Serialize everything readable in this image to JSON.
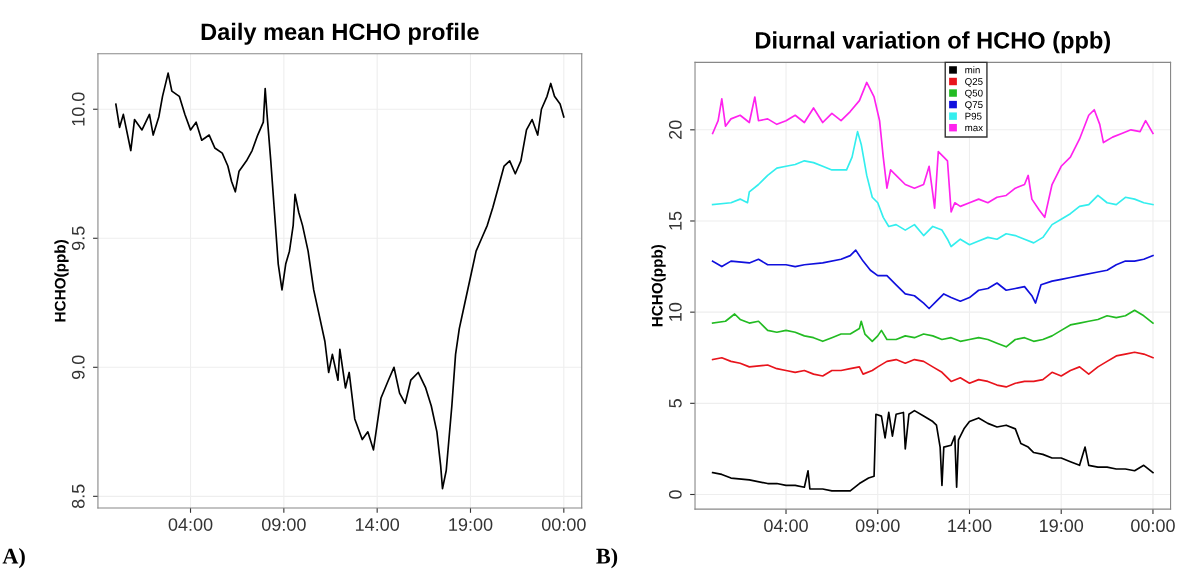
{
  "chart_data": [
    {
      "type": "line",
      "title": "Daily mean HCHO profile",
      "ylabel": "HCHO(ppb)",
      "annotations": [
        "A)"
      ],
      "xlim": [
        -0.96,
        24.96
      ],
      "xticks": [
        {
          "value": 4,
          "label": "04:00"
        },
        {
          "value": 9,
          "label": "09:00"
        },
        {
          "value": 14,
          "label": "14:00"
        },
        {
          "value": 19,
          "label": "19:00"
        },
        {
          "value": 24,
          "label": "00:00"
        }
      ],
      "ylim": [
        8.455,
        10.215
      ],
      "yticks": [
        {
          "value": 8.5,
          "label": "8.5"
        },
        {
          "value": 9,
          "label": "9.0"
        },
        {
          "value": 9.5,
          "label": "9.5"
        },
        {
          "value": 10,
          "label": "10.0"
        }
      ],
      "grid": true,
      "series": [
        {
          "color": "#000000",
          "x": [
            0,
            0.2,
            0.4,
            0.8,
            1.0,
            1.4,
            1.8,
            2.0,
            2.3,
            2.5,
            2.8,
            3.0,
            3.4,
            3.7,
            4.0,
            4.3,
            4.6,
            5.0,
            5.3,
            5.7,
            6.0,
            6.2,
            6.4,
            6.6,
            7.0,
            7.3,
            7.6,
            7.9,
            8.0,
            8.1,
            8.3,
            8.5,
            8.7,
            8.9,
            9.1,
            9.3,
            9.5,
            9.6,
            9.8,
            10.0,
            10.3,
            10.6,
            10.9,
            11.2,
            11.4,
            11.6,
            11.9,
            12.0,
            12.3,
            12.5,
            12.8,
            13.2,
            13.5,
            13.8,
            14.0,
            14.2,
            14.6,
            14.9,
            15.2,
            15.5,
            15.8,
            16.2,
            16.6,
            16.9,
            17.2,
            17.4,
            17.5,
            17.7,
            18.0,
            18.2,
            18.4,
            18.7,
            19.0,
            19.3,
            19.6,
            19.9,
            20.2,
            20.5,
            20.8,
            21.1,
            21.4,
            21.7,
            22.0,
            22.3,
            22.6,
            22.8,
            23.1,
            23.3,
            23.5,
            23.8,
            24.0
          ],
          "values": [
            10.02,
            9.93,
            9.98,
            9.84,
            9.96,
            9.92,
            9.98,
            9.9,
            9.97,
            10.05,
            10.14,
            10.07,
            10.05,
            9.98,
            9.92,
            9.95,
            9.88,
            9.9,
            9.85,
            9.83,
            9.78,
            9.72,
            9.68,
            9.76,
            9.8,
            9.84,
            9.9,
            9.95,
            10.08,
            9.98,
            9.8,
            9.6,
            9.4,
            9.3,
            9.4,
            9.45,
            9.55,
            9.67,
            9.6,
            9.55,
            9.45,
            9.3,
            9.2,
            9.1,
            8.98,
            9.05,
            8.95,
            9.07,
            8.92,
            8.98,
            8.8,
            8.72,
            8.75,
            8.68,
            8.78,
            8.88,
            8.95,
            9.0,
            8.9,
            8.86,
            8.95,
            8.98,
            8.92,
            8.85,
            8.75,
            8.62,
            8.53,
            8.6,
            8.85,
            9.05,
            9.15,
            9.25,
            9.35,
            9.45,
            9.5,
            9.55,
            9.62,
            9.7,
            9.78,
            9.8,
            9.75,
            9.8,
            9.92,
            9.96,
            9.9,
            10.0,
            10.05,
            10.1,
            10.05,
            10.02,
            9.97
          ]
        }
      ]
    },
    {
      "type": "line",
      "title": "Diurnal variation of HCHO (ppb)",
      "ylabel": "HCHO(ppb)",
      "annotations": [
        "B)"
      ],
      "xlim": [
        -0.96,
        24.96
      ],
      "xticks": [
        {
          "value": 4,
          "label": "04:00"
        },
        {
          "value": 9,
          "label": "09:00"
        },
        {
          "value": 14,
          "label": "14:00"
        },
        {
          "value": 19,
          "label": "19:00"
        },
        {
          "value": 24,
          "label": "00:00"
        }
      ],
      "ylim": [
        -0.8,
        23.7
      ],
      "yticks": [
        0,
        5,
        10,
        15,
        20
      ],
      "grid": true,
      "legend": "top",
      "series": [
        {
          "name": "min",
          "color": "#000000",
          "x": [
            0,
            0.5,
            1,
            2,
            3,
            3.5,
            4,
            4.5,
            5,
            5.2,
            5.3,
            6,
            6.5,
            7,
            7.5,
            8,
            8.5,
            8.8,
            8.9,
            9.2,
            9.4,
            9.6,
            9.8,
            10,
            10.4,
            10.5,
            10.7,
            11,
            11.5,
            12,
            12.2,
            12.4,
            12.5,
            12.6,
            13,
            13.2,
            13.3,
            13.4,
            13.7,
            14,
            14.5,
            15,
            15.5,
            16,
            16.5,
            16.8,
            17.2,
            17.5,
            18,
            18.5,
            19,
            19.5,
            20,
            20.3,
            20.5,
            21,
            21.5,
            22,
            22.5,
            23,
            23.5,
            24
          ],
          "values": [
            1.2,
            1.1,
            0.9,
            0.8,
            0.6,
            0.6,
            0.5,
            0.5,
            0.4,
            1.3,
            0.3,
            0.3,
            0.2,
            0.2,
            0.2,
            0.6,
            0.9,
            1.0,
            4.4,
            4.3,
            3.1,
            4.5,
            3.2,
            4.4,
            4.5,
            2.5,
            4.4,
            4.6,
            4.3,
            4.0,
            3.8,
            2.6,
            0.5,
            2.6,
            2.7,
            3.2,
            0.4,
            3.0,
            3.6,
            4.0,
            4.2,
            3.9,
            3.7,
            3.8,
            3.6,
            2.8,
            2.6,
            2.3,
            2.2,
            2.0,
            2.0,
            1.8,
            1.6,
            2.6,
            1.6,
            1.5,
            1.5,
            1.4,
            1.4,
            1.3,
            1.6,
            1.2
          ]
        },
        {
          "name": "Q25",
          "color": "#e8141c",
          "x": [
            0,
            0.5,
            1,
            1.5,
            2,
            3,
            3.5,
            4,
            4.5,
            5,
            5.5,
            6,
            6.5,
            7,
            7.5,
            8,
            8.2,
            8.7,
            9,
            9.5,
            10,
            10.5,
            11,
            11.5,
            12,
            12.5,
            13,
            13.5,
            14,
            14.5,
            15,
            15.5,
            16,
            16.5,
            17,
            17.5,
            18,
            18.5,
            19,
            19.5,
            20,
            20.5,
            21,
            21.5,
            22,
            22.5,
            23,
            23.5,
            24
          ],
          "values": [
            7.4,
            7.5,
            7.3,
            7.2,
            7.0,
            7.1,
            6.9,
            6.8,
            6.7,
            6.8,
            6.6,
            6.5,
            6.8,
            6.8,
            6.9,
            7.0,
            6.6,
            6.8,
            7.0,
            7.3,
            7.4,
            7.2,
            7.4,
            7.3,
            7.0,
            6.7,
            6.2,
            6.4,
            6.1,
            6.3,
            6.2,
            6.0,
            5.9,
            6.1,
            6.2,
            6.2,
            6.3,
            6.7,
            6.5,
            6.8,
            7.0,
            6.6,
            7.0,
            7.3,
            7.6,
            7.7,
            7.8,
            7.7,
            7.5
          ]
        },
        {
          "name": "Q50",
          "color": "#22bb22",
          "x": [
            0,
            0.7,
            1.2,
            1.5,
            2,
            2.5,
            3,
            3.5,
            4,
            4.5,
            5,
            5.5,
            6,
            6.5,
            7,
            7.5,
            8,
            8.1,
            8.3,
            8.7,
            9,
            9.2,
            9.5,
            10,
            10.5,
            11,
            11.5,
            12,
            12.5,
            13,
            13.5,
            14,
            14.5,
            15,
            15.5,
            16,
            16.5,
            17,
            17.5,
            18,
            18.5,
            19,
            19.5,
            20,
            20.5,
            21,
            21.5,
            22,
            22.5,
            23,
            23.5,
            24
          ],
          "values": [
            9.4,
            9.5,
            9.9,
            9.6,
            9.4,
            9.5,
            9.0,
            8.9,
            9.0,
            8.9,
            8.7,
            8.6,
            8.4,
            8.6,
            8.8,
            8.8,
            9.1,
            9.5,
            8.8,
            8.4,
            8.7,
            9.0,
            8.5,
            8.5,
            8.7,
            8.6,
            8.8,
            8.7,
            8.5,
            8.6,
            8.4,
            8.5,
            8.6,
            8.5,
            8.3,
            8.1,
            8.5,
            8.6,
            8.4,
            8.5,
            8.7,
            9.0,
            9.3,
            9.4,
            9.5,
            9.6,
            9.8,
            9.7,
            9.8,
            10.1,
            9.8,
            9.4
          ]
        },
        {
          "name": "Q75",
          "color": "#1010dd",
          "x": [
            0,
            0.5,
            1,
            2,
            2.5,
            3,
            4,
            4.5,
            5,
            6,
            7,
            7.5,
            7.8,
            8.2,
            8.6,
            9,
            9.5,
            10,
            10.5,
            11,
            11.5,
            11.8,
            12.2,
            12.6,
            13,
            13.5,
            14,
            14.5,
            15,
            15.5,
            16,
            16.5,
            17,
            17.4,
            17.6,
            17.9,
            18.5,
            19,
            19.5,
            20,
            21,
            21.5,
            22,
            22.5,
            23,
            23.5,
            24
          ],
          "values": [
            12.8,
            12.5,
            12.8,
            12.7,
            12.9,
            12.6,
            12.6,
            12.5,
            12.6,
            12.7,
            12.9,
            13.1,
            13.4,
            12.8,
            12.3,
            12.0,
            12.0,
            11.5,
            11.0,
            10.9,
            10.5,
            10.2,
            10.6,
            11.0,
            10.8,
            10.6,
            10.8,
            11.2,
            11.3,
            11.6,
            11.2,
            11.3,
            11.4,
            10.9,
            10.5,
            11.5,
            11.7,
            11.8,
            11.9,
            12.0,
            12.2,
            12.3,
            12.6,
            12.8,
            12.8,
            12.9,
            13.1
          ]
        },
        {
          "name": "P95",
          "color": "#33eeee",
          "x": [
            0,
            1,
            1.5,
            1.9,
            2,
            2.5,
            3,
            3.5,
            4,
            4.5,
            5,
            5.5,
            6,
            6.5,
            7,
            7.3,
            7.6,
            7.9,
            8.1,
            8.4,
            8.7,
            9,
            9.3,
            9.6,
            10,
            10.5,
            11,
            11.5,
            12,
            12.5,
            12.8,
            13,
            13.5,
            14,
            14.5,
            15,
            15.5,
            16,
            16.5,
            17,
            17.5,
            18,
            18.5,
            19,
            19.5,
            20,
            20.5,
            21,
            21.5,
            22,
            22.5,
            23,
            23.5,
            24
          ],
          "values": [
            15.9,
            16.0,
            16.2,
            16.0,
            16.6,
            17.0,
            17.5,
            17.9,
            18.0,
            18.1,
            18.3,
            18.2,
            18.0,
            17.8,
            17.8,
            17.8,
            18.5,
            19.9,
            19.2,
            17.5,
            16.3,
            16.0,
            15.2,
            14.7,
            14.8,
            14.5,
            14.8,
            14.2,
            14.7,
            14.5,
            14.0,
            13.6,
            14.0,
            13.7,
            13.9,
            14.1,
            14.0,
            14.3,
            14.2,
            14.0,
            13.8,
            14.1,
            14.8,
            15.1,
            15.4,
            15.8,
            15.9,
            16.4,
            16.0,
            15.9,
            16.3,
            16.2,
            16.0,
            15.9
          ]
        },
        {
          "name": "max",
          "color": "#ff22ee",
          "x": [
            0,
            0.3,
            0.5,
            0.7,
            1,
            1.5,
            2,
            2.3,
            2.5,
            3,
            3.5,
            4,
            4.5,
            5,
            5.5,
            6,
            6.5,
            7,
            7.5,
            8,
            8.4,
            8.8,
            9.1,
            9.3,
            9.5,
            9.7,
            10,
            10.5,
            11,
            11.5,
            11.8,
            12,
            12.1,
            12.3,
            12.6,
            12.8,
            13,
            13.2,
            13.5,
            14,
            14.5,
            15,
            15.5,
            16,
            16.5,
            17,
            17.2,
            17.4,
            17.8,
            18.1,
            18.5,
            19,
            19.5,
            20,
            20.5,
            20.8,
            21.1,
            21.3,
            21.8,
            22.3,
            22.8,
            23.3,
            23.6,
            24
          ],
          "values": [
            19.8,
            20.5,
            21.7,
            20.2,
            20.6,
            20.8,
            20.4,
            21.8,
            20.5,
            20.6,
            20.3,
            20.5,
            20.8,
            20.4,
            21.2,
            20.4,
            20.9,
            20.5,
            21.0,
            21.6,
            22.6,
            21.8,
            20.5,
            18.5,
            16.8,
            17.8,
            17.5,
            17.0,
            16.8,
            17.0,
            18.0,
            16.5,
            15.7,
            18.8,
            18.5,
            18.3,
            15.5,
            16.0,
            15.8,
            16.0,
            16.2,
            16.0,
            16.3,
            16.4,
            16.8,
            17.0,
            17.5,
            16.2,
            15.6,
            15.2,
            17.0,
            18.0,
            18.5,
            19.5,
            20.8,
            21.1,
            20.3,
            19.3,
            19.6,
            19.8,
            20.0,
            19.9,
            20.5,
            19.8
          ]
        }
      ]
    }
  ]
}
